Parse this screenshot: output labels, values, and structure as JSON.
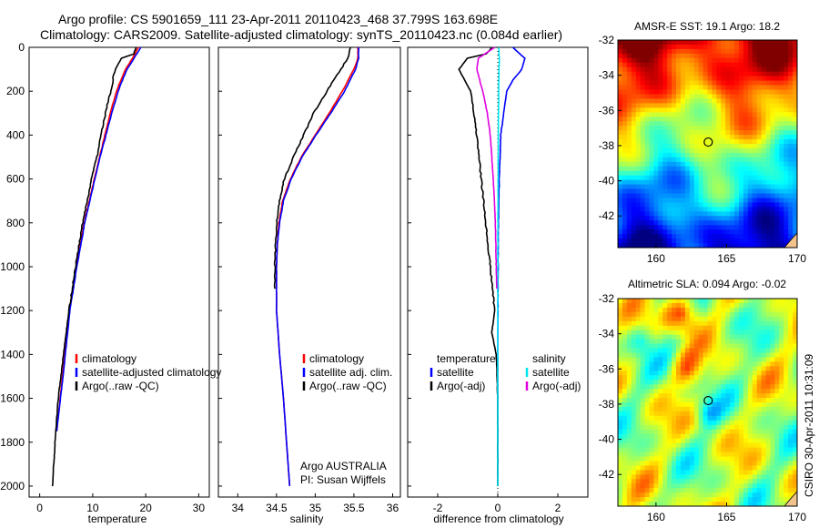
{
  "header": {
    "line1": "Argo profile: CS 5901659_111 23-Apr-2011 20110423_468 37.799S 163.698E",
    "line2": "Climatology: CARS2009. Satellite-adjusted climatology: synTS_20110423.nc (0.084d earlier)"
  },
  "footer_text": "CSIRO 30-Apr-2011 10:31:09",
  "colors": {
    "climatology": "#ff0000",
    "satellite": "#0000ff",
    "argo": "#000000",
    "sat_salinity": "#00e5ee",
    "argo_adj_salinity": "#e000e0",
    "float_marker": "#000000"
  },
  "chart_data": [
    {
      "id": "temperature",
      "type": "line",
      "xlabel": "temperature",
      "ylabel": "",
      "xlim": [
        -2,
        32
      ],
      "ylim": [
        2050,
        0
      ],
      "x_ticks": [
        0,
        10,
        20,
        30
      ],
      "y_ticks": [
        0,
        200,
        400,
        600,
        800,
        1000,
        1200,
        1400,
        1600,
        1800,
        2000
      ],
      "legend": {
        "position": "lower-right",
        "entries": [
          {
            "label": "climatology",
            "color": "#ff0000"
          },
          {
            "label": "satellite-adjusted climatology",
            "color": "#0000ff"
          },
          {
            "label": "Argo(..raw -QC)",
            "color": "#000000"
          }
        ]
      },
      "series": [
        {
          "name": "climatology",
          "color": "#ff0000",
          "depth": [
            0,
            50,
            100,
            150,
            200,
            300,
            400,
            500,
            600,
            800,
            1000,
            1200,
            1500,
            1750
          ],
          "values": [
            18.6,
            17.5,
            16.2,
            15.3,
            14.5,
            13.3,
            12.3,
            11.3,
            10.3,
            8.4,
            6.9,
            5.6,
            4.3,
            3.2
          ]
        },
        {
          "name": "satellite-adjusted climatology",
          "color": "#0000ff",
          "depth": [
            0,
            50,
            100,
            150,
            200,
            300,
            400,
            500,
            600,
            800,
            1000,
            1200,
            1500,
            1750
          ],
          "values": [
            19.1,
            17.8,
            16.5,
            15.6,
            14.8,
            13.6,
            12.5,
            11.4,
            10.4,
            8.5,
            7.0,
            5.7,
            4.4,
            3.2
          ]
        },
        {
          "name": "Argo(..raw -QC)",
          "color": "#000000",
          "depth": [
            0,
            30,
            50,
            100,
            150,
            200,
            300,
            400,
            500,
            600,
            800,
            1000,
            1200,
            1400,
            1600,
            1800,
            2000
          ],
          "values": [
            18.2,
            17.8,
            15.5,
            14.2,
            13.8,
            13.4,
            12.4,
            11.6,
            10.8,
            9.8,
            8.1,
            6.8,
            5.5,
            4.5,
            3.5,
            2.9,
            2.4
          ]
        }
      ]
    },
    {
      "id": "salinity",
      "type": "line",
      "xlabel": "salinity",
      "ylabel": "",
      "xlim": [
        33.75,
        36.1
      ],
      "ylim": [
        2050,
        0
      ],
      "x_ticks": [
        34,
        34.5,
        35,
        35.5,
        36
      ],
      "legend": {
        "position": "lower-right",
        "entries": [
          {
            "label": "climatology",
            "color": "#ff0000"
          },
          {
            "label": "satellite adj. clim.",
            "color": "#0000ff"
          },
          {
            "label": "Argo(..raw -QC)",
            "color": "#000000"
          }
        ]
      },
      "annotation": [
        "Argo AUSTRALIA",
        "PI: Susan Wijffels"
      ],
      "series": [
        {
          "name": "climatology",
          "color": "#ff0000",
          "depth": [
            0,
            50,
            100,
            200,
            300,
            400,
            500,
            600,
            700,
            800,
            900,
            1000,
            1200,
            1400,
            1600,
            1800,
            2000
          ],
          "values": [
            35.55,
            35.55,
            35.5,
            35.35,
            35.18,
            35.0,
            34.82,
            34.68,
            34.58,
            34.53,
            34.51,
            34.5,
            34.5,
            34.54,
            34.59,
            34.63,
            34.67
          ]
        },
        {
          "name": "satellite adj. clim.",
          "color": "#0000ff",
          "depth": [
            0,
            50,
            100,
            200,
            300,
            400,
            500,
            600,
            700,
            800,
            900,
            1000,
            1200,
            1400,
            1600,
            1800,
            2000
          ],
          "values": [
            35.56,
            35.56,
            35.52,
            35.38,
            35.2,
            35.01,
            34.83,
            34.69,
            34.59,
            34.54,
            34.51,
            34.5,
            34.5,
            34.54,
            34.59,
            34.63,
            34.67
          ]
        },
        {
          "name": "Argo(..raw -QC)",
          "color": "#000000",
          "depth": [
            0,
            50,
            100,
            200,
            300,
            400,
            500,
            600,
            700,
            800,
            900,
            1000,
            1100
          ],
          "values": [
            35.45,
            35.42,
            35.33,
            35.15,
            34.98,
            34.85,
            34.72,
            34.6,
            34.54,
            34.5,
            34.49,
            34.48,
            34.48
          ]
        }
      ]
    },
    {
      "id": "difference",
      "type": "line",
      "xlabel": "difference from climatology",
      "ylabel": "",
      "xlim": [
        -3.0,
        3.0
      ],
      "ylim": [
        2050,
        0
      ],
      "x_ticks": [
        -2,
        0,
        2
      ],
      "legend": {
        "position": "lower-right",
        "columns": [
          {
            "header": "temperature",
            "entries": [
              {
                "label": "satellite",
                "color": "#0000ff"
              },
              {
                "label": "Argo(-adj)",
                "color": "#000000"
              }
            ]
          },
          {
            "header": "salinity",
            "entries": [
              {
                "label": "satellite",
                "color": "#00e5ee"
              },
              {
                "label": "Argo(-adj)",
                "color": "#e000e0"
              }
            ]
          }
        ]
      },
      "series": [
        {
          "name": "temperature satellite",
          "color": "#0000ff",
          "depth": [
            0,
            50,
            100,
            150,
            200,
            300,
            400,
            600,
            800,
            1000,
            1500,
            2000
          ],
          "values": [
            0.5,
            0.9,
            0.8,
            0.5,
            0.3,
            0.2,
            0.1,
            0.05,
            0.02,
            0.01,
            0.0,
            0.0
          ]
        },
        {
          "name": "temperature Argo(-adj)",
          "color": "#000000",
          "depth": [
            0,
            30,
            50,
            100,
            150,
            200,
            300,
            400,
            600,
            800,
            1000,
            1200,
            1300,
            1400,
            1600,
            2000
          ],
          "values": [
            -0.2,
            -0.4,
            -1.0,
            -1.3,
            -1.1,
            -0.9,
            -0.8,
            -0.7,
            -0.55,
            -0.4,
            -0.25,
            -0.1,
            -0.2,
            -0.05,
            0.0,
            0.0
          ]
        },
        {
          "name": "salinity satellite",
          "color": "#00e5ee",
          "depth": [
            0,
            50,
            100,
            200,
            400,
            600,
            1000,
            1500,
            2000
          ],
          "values": [
            0.03,
            0.05,
            0.04,
            0.03,
            0.02,
            0.01,
            0.0,
            0.0,
            0.0
          ]
        },
        {
          "name": "salinity Argo(-adj)",
          "color": "#e000e0",
          "depth": [
            0,
            50,
            100,
            150,
            200,
            300,
            400,
            500,
            600,
            800,
            1000,
            1100
          ],
          "values": [
            -0.1,
            -0.65,
            -0.7,
            -0.6,
            -0.5,
            -0.35,
            -0.25,
            -0.2,
            -0.15,
            -0.08,
            -0.05,
            -0.03
          ]
        }
      ]
    },
    {
      "id": "sst-map",
      "type": "heatmap",
      "title": "AMSR-E SST: 19.1  Argo: 18.2",
      "xlim": [
        157.3,
        170.0
      ],
      "ylim": [
        -43.8,
        -32.0
      ],
      "x_ticks": [
        160,
        165,
        170
      ],
      "y_ticks": [
        -32,
        -34,
        -36,
        -38,
        -40,
        -42
      ],
      "marker": {
        "lon": 163.7,
        "lat": -37.8
      },
      "colormap": "jet"
    },
    {
      "id": "sla-map",
      "type": "heatmap",
      "title": "Altimetric SLA: 0.094  Argo: -0.02",
      "xlim": [
        157.3,
        170.0
      ],
      "ylim": [
        -43.8,
        -32.0
      ],
      "x_ticks": [
        160,
        165,
        170
      ],
      "y_ticks": [
        -32,
        -34,
        -36,
        -38,
        -40,
        -42
      ],
      "marker": {
        "lon": 163.7,
        "lat": -37.8
      },
      "colormap": "jet"
    }
  ]
}
